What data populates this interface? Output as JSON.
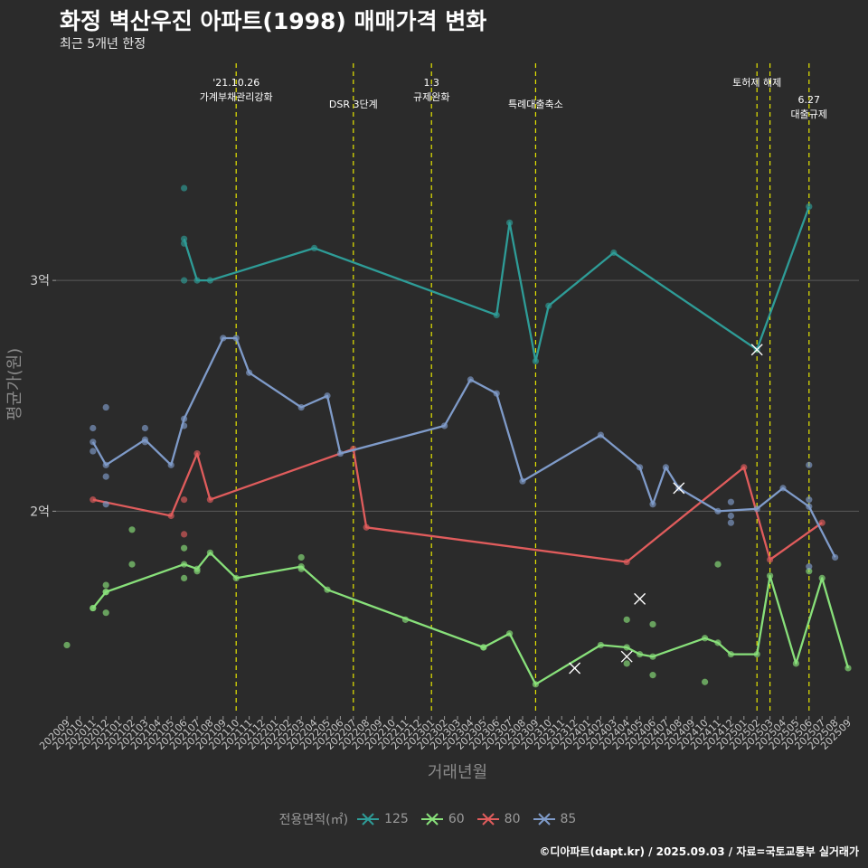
{
  "title": "화정 벽산우진 아파트(1998) 매매가격 변화",
  "subtitle": "최근 5개년 한정",
  "caption": "©디아파트(dapt.kr) / 2025.09.03 / 자료=국토교통부 실거래가",
  "chart_data": {
    "type": "line",
    "xlabel": "거래년월",
    "ylabel": "평균가(원)",
    "y_unit": "억원",
    "ylim": [
      1.12,
      3.98
    ],
    "x_categories": [
      "202009",
      "202010",
      "202011",
      "202012",
      "202101",
      "202102",
      "202103",
      "202104",
      "202105",
      "202106",
      "202107",
      "202108",
      "202109",
      "202110",
      "202111",
      "202112",
      "202201",
      "202202",
      "202203",
      "202204",
      "202205",
      "202206",
      "202207",
      "202208",
      "202209",
      "202210",
      "202211",
      "202212",
      "202301",
      "202302",
      "202303",
      "202304",
      "202305",
      "202306",
      "202307",
      "202308",
      "202309",
      "202310",
      "202311",
      "202312",
      "202401",
      "202402",
      "202403",
      "202404",
      "202405",
      "202406",
      "202407",
      "202408",
      "202409",
      "202410",
      "202411",
      "202412",
      "202501",
      "202502",
      "202503",
      "202504",
      "202505",
      "202506",
      "202507",
      "202508",
      "202509"
    ],
    "y_ticks": [
      {
        "value": 2.0,
        "label": "2억"
      },
      {
        "value": 3.0,
        "label": "3억"
      }
    ],
    "grid": true,
    "legend_title": "전용면적(㎡)",
    "legend_position": "bottom",
    "series": [
      {
        "name": "125",
        "color": "#2e9c97",
        "line": [
          [
            "202106",
            3.18
          ],
          [
            "202107",
            3.0
          ],
          [
            "202108",
            3.0
          ],
          [
            "202204",
            3.14
          ],
          [
            "202306",
            2.85
          ],
          [
            "202307",
            3.25
          ],
          [
            "202309",
            2.65
          ],
          [
            "202310",
            2.89
          ],
          [
            "202403",
            3.12
          ],
          [
            "202502",
            2.7
          ],
          [
            "202506",
            3.32
          ]
        ],
        "points": [
          [
            "202106",
            3.4
          ],
          [
            "202106",
            3.16
          ],
          [
            "202106",
            3.0
          ]
        ],
        "cross": [
          [
            "202502",
            2.7
          ]
        ]
      },
      {
        "name": "60",
        "color": "#88e07a",
        "line": [
          [
            "202011",
            1.58
          ],
          [
            "202012",
            1.65
          ],
          [
            "202106",
            1.77
          ],
          [
            "202107",
            1.75
          ],
          [
            "202108",
            1.82
          ],
          [
            "202110",
            1.71
          ],
          [
            "202203",
            1.76
          ],
          [
            "202205",
            1.66
          ],
          [
            "202305",
            1.41
          ],
          [
            "202307",
            1.47
          ],
          [
            "202309",
            1.25
          ],
          [
            "202402",
            1.42
          ],
          [
            "202404",
            1.41
          ],
          [
            "202405",
            1.38
          ],
          [
            "202406",
            1.37
          ],
          [
            "202410",
            1.45
          ],
          [
            "202411",
            1.43
          ],
          [
            "202412",
            1.38
          ],
          [
            "202502",
            1.38
          ],
          [
            "202503",
            1.72
          ],
          [
            "202505",
            1.34
          ],
          [
            "202507",
            1.71
          ],
          [
            "202509",
            1.32
          ]
        ],
        "points": [
          [
            "202009",
            1.42
          ],
          [
            "202011",
            1.58
          ],
          [
            "202012",
            1.65
          ],
          [
            "202012",
            1.68
          ],
          [
            "202012",
            1.56
          ],
          [
            "202102",
            1.92
          ],
          [
            "202102",
            1.77
          ],
          [
            "202106",
            1.84
          ],
          [
            "202106",
            1.71
          ],
          [
            "202107",
            1.74
          ],
          [
            "202203",
            1.8
          ],
          [
            "202203",
            1.75
          ],
          [
            "202211",
            1.53
          ],
          [
            "202305",
            1.41
          ],
          [
            "202404",
            1.34
          ],
          [
            "202404",
            1.53
          ],
          [
            "202406",
            1.51
          ],
          [
            "202406",
            1.29
          ],
          [
            "202410",
            1.26
          ],
          [
            "202411",
            1.77
          ],
          [
            "202506",
            1.74
          ]
        ],
        "cross": [
          [
            "202312",
            1.32
          ],
          [
            "202404",
            1.37
          ]
        ]
      },
      {
        "name": "80",
        "color": "#e05c5c",
        "line": [
          [
            "202011",
            2.05
          ],
          [
            "202105",
            1.98
          ],
          [
            "202107",
            2.25
          ],
          [
            "202108",
            2.05
          ],
          [
            "202207",
            2.27
          ],
          [
            "202208",
            1.93
          ],
          [
            "202404",
            1.78
          ],
          [
            "202501",
            2.19
          ],
          [
            "202503",
            1.79
          ],
          [
            "202507",
            1.95
          ]
        ],
        "points": [
          [
            "202106",
            2.05
          ],
          [
            "202106",
            1.9
          ]
        ],
        "cross": []
      },
      {
        "name": "85",
        "color": "#7f9bc9",
        "line": [
          [
            "202011",
            2.3
          ],
          [
            "202012",
            2.2
          ],
          [
            "202103",
            2.31
          ],
          [
            "202105",
            2.2
          ],
          [
            "202106",
            2.4
          ],
          [
            "202109",
            2.75
          ],
          [
            "202110",
            2.75
          ],
          [
            "202111",
            2.6
          ],
          [
            "202203",
            2.45
          ],
          [
            "202205",
            2.5
          ],
          [
            "202206",
            2.25
          ],
          [
            "202302",
            2.37
          ],
          [
            "202304",
            2.57
          ],
          [
            "202306",
            2.51
          ],
          [
            "202308",
            2.13
          ],
          [
            "202402",
            2.33
          ],
          [
            "202405",
            2.19
          ],
          [
            "202406",
            2.03
          ],
          [
            "202407",
            2.19
          ],
          [
            "202408",
            2.1
          ],
          [
            "202411",
            2.0
          ],
          [
            "202502",
            2.01
          ],
          [
            "202504",
            2.1
          ],
          [
            "202506",
            2.02
          ],
          [
            "202508",
            1.8
          ]
        ],
        "points": [
          [
            "202011",
            2.36
          ],
          [
            "202011",
            2.26
          ],
          [
            "202012",
            2.45
          ],
          [
            "202012",
            2.15
          ],
          [
            "202012",
            2.03
          ],
          [
            "202103",
            2.36
          ],
          [
            "202103",
            2.3
          ],
          [
            "202106",
            2.37
          ],
          [
            "202412",
            2.04
          ],
          [
            "202412",
            1.98
          ],
          [
            "202412",
            1.95
          ],
          [
            "202506",
            2.2
          ],
          [
            "202506",
            2.05
          ],
          [
            "202506",
            1.76
          ]
        ],
        "cross": [
          [
            "202408",
            2.1
          ],
          [
            "202405",
            1.62
          ]
        ]
      }
    ],
    "annotations": [
      {
        "x": "202110",
        "lines": [
          "'21.10.26",
          "가계부채관리강화"
        ],
        "level": 0
      },
      {
        "x": "202207",
        "lines": [
          "DSR 3단계"
        ],
        "level": 1
      },
      {
        "x": "202301",
        "lines": [
          "1.3",
          "규제완화"
        ],
        "level": 0
      },
      {
        "x": "202309",
        "lines": [
          "특례대출축소"
        ],
        "level": 1
      },
      {
        "x": "202502",
        "lines": [
          "토허제 해제"
        ],
        "level": 0,
        "extra_line_x": "202503"
      },
      {
        "x": "202506",
        "lines": [
          "6.27",
          "대출규제"
        ],
        "level": 0.8
      }
    ]
  }
}
